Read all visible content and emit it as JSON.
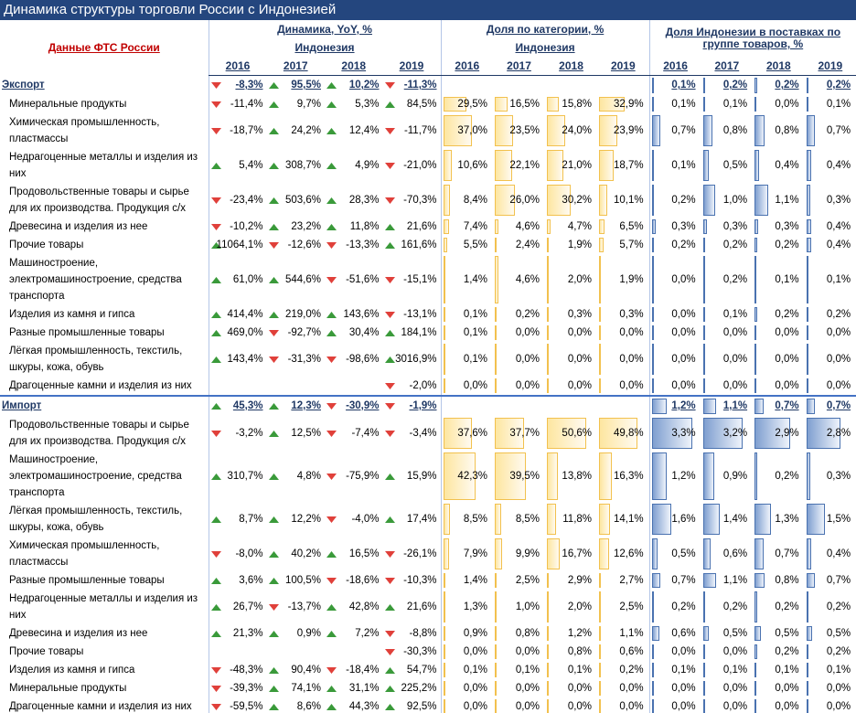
{
  "title": "Динамика структуры торговли России с Индонезией",
  "source_label": "Данные ФТС России",
  "headers": {
    "yoy": "Динамика, YoY, %",
    "share": "Доля по категории, %",
    "indonesia_share": "Доля Индонезии в поставках по группе товаров, %",
    "country": "Индонезия"
  },
  "years": [
    "2016",
    "2017",
    "2018",
    "2019"
  ],
  "sections": [
    {
      "name": "Экспорт",
      "yoy": [
        "-8,3%",
        "95,5%",
        "10,2%",
        "-11,3%"
      ],
      "indonesia_share": [
        "0,1%",
        "0,2%",
        "0,2%",
        "0,2%"
      ],
      "rows": [
        {
          "label": "Минеральные продукты",
          "yoy": [
            "-11,4%",
            "9,7%",
            "5,3%",
            "84,5%"
          ],
          "share": [
            "29,5%",
            "16,5%",
            "15,8%",
            "32,9%"
          ],
          "indonesia_share": [
            "0,1%",
            "0,1%",
            "0,0%",
            "0,1%"
          ]
        },
        {
          "label": "Химическая промышленность, пластмассы",
          "yoy": [
            "-18,7%",
            "24,2%",
            "12,4%",
            "-11,7%"
          ],
          "share": [
            "37,0%",
            "23,5%",
            "24,0%",
            "23,9%"
          ],
          "indonesia_share": [
            "0,7%",
            "0,8%",
            "0,8%",
            "0,7%"
          ]
        },
        {
          "label": "Недрагоценные металлы и изделия из них",
          "yoy": [
            "5,4%",
            "308,7%",
            "4,9%",
            "-21,0%"
          ],
          "share": [
            "10,6%",
            "22,1%",
            "21,0%",
            "18,7%"
          ],
          "indonesia_share": [
            "0,1%",
            "0,5%",
            "0,4%",
            "0,4%"
          ]
        },
        {
          "label": "Продовольственные товары и сырье для их производства. Продукция с/х",
          "yoy": [
            "-23,4%",
            "503,6%",
            "28,3%",
            "-70,3%"
          ],
          "share": [
            "8,4%",
            "26,0%",
            "30,2%",
            "10,1%"
          ],
          "indonesia_share": [
            "0,2%",
            "1,0%",
            "1,1%",
            "0,3%"
          ]
        },
        {
          "label": "Древесина и изделия из нее",
          "yoy": [
            "-10,2%",
            "23,2%",
            "11,8%",
            "21,6%"
          ],
          "share": [
            "7,4%",
            "4,6%",
            "4,7%",
            "6,5%"
          ],
          "indonesia_share": [
            "0,3%",
            "0,3%",
            "0,3%",
            "0,4%"
          ]
        },
        {
          "label": "Прочие товары",
          "yoy": [
            "11064,1%",
            "-12,6%",
            "-13,3%",
            "161,6%"
          ],
          "share": [
            "5,5%",
            "2,4%",
            "1,9%",
            "5,7%"
          ],
          "indonesia_share": [
            "0,2%",
            "0,2%",
            "0,2%",
            "0,4%"
          ]
        },
        {
          "label": "Машиностроение, электромашиностроение, средства транспорта",
          "yoy": [
            "61,0%",
            "544,6%",
            "-51,6%",
            "-15,1%"
          ],
          "share": [
            "1,4%",
            "4,6%",
            "2,0%",
            "1,9%"
          ],
          "indonesia_share": [
            "0,0%",
            "0,2%",
            "0,1%",
            "0,1%"
          ]
        },
        {
          "label": "Изделия из камня и гипса",
          "yoy": [
            "414,4%",
            "219,0%",
            "143,6%",
            "-13,1%"
          ],
          "share": [
            "0,1%",
            "0,2%",
            "0,3%",
            "0,3%"
          ],
          "indonesia_share": [
            "0,0%",
            "0,1%",
            "0,2%",
            "0,2%"
          ]
        },
        {
          "label": "Разные промышленные товары",
          "yoy": [
            "469,0%",
            "-92,7%",
            "30,4%",
            "184,1%"
          ],
          "share": [
            "0,1%",
            "0,0%",
            "0,0%",
            "0,0%"
          ],
          "indonesia_share": [
            "0,0%",
            "0,0%",
            "0,0%",
            "0,0%"
          ]
        },
        {
          "label": "Лёгкая промышленность, текстиль, шкуры, кожа, обувь",
          "yoy": [
            "143,4%",
            "-31,3%",
            "-98,6%",
            "3016,9%"
          ],
          "share": [
            "0,1%",
            "0,0%",
            "0,0%",
            "0,0%"
          ],
          "indonesia_share": [
            "0,0%",
            "0,0%",
            "0,0%",
            "0,0%"
          ]
        },
        {
          "label": "Драгоценные камни и изделия из них",
          "yoy": [
            null,
            null,
            null,
            "-2,0%"
          ],
          "share": [
            "0,0%",
            "0,0%",
            "0,0%",
            "0,0%"
          ],
          "indonesia_share": [
            "0,0%",
            "0,0%",
            "0,0%",
            "0,0%"
          ]
        }
      ]
    },
    {
      "name": "Импорт",
      "yoy": [
        "45,3%",
        "12,3%",
        "-30,9%",
        "-1,9%"
      ],
      "indonesia_share": [
        "1,2%",
        "1,1%",
        "0,7%",
        "0,7%"
      ],
      "rows": [
        {
          "label": "Продовольственные товары и сырье для их производства. Продукция с/х",
          "yoy": [
            "-3,2%",
            "12,5%",
            "-7,4%",
            "-3,4%"
          ],
          "share": [
            "37,6%",
            "37,7%",
            "50,6%",
            "49,8%"
          ],
          "indonesia_share": [
            "3,3%",
            "3,2%",
            "2,9%",
            "2,8%"
          ]
        },
        {
          "label": "Машиностроение, электромашиностроение, средства транспорта",
          "yoy": [
            "310,7%",
            "4,8%",
            "-75,9%",
            "15,9%"
          ],
          "share": [
            "42,3%",
            "39,5%",
            "13,8%",
            "16,3%"
          ],
          "indonesia_share": [
            "1,2%",
            "0,9%",
            "0,2%",
            "0,3%"
          ]
        },
        {
          "label": "Лёгкая промышленность, текстиль, шкуры, кожа, обувь",
          "yoy": [
            "8,7%",
            "12,2%",
            "-4,0%",
            "17,4%"
          ],
          "share": [
            "8,5%",
            "8,5%",
            "11,8%",
            "14,1%"
          ],
          "indonesia_share": [
            "1,6%",
            "1,4%",
            "1,3%",
            "1,5%"
          ]
        },
        {
          "label": "Химическая промышленность, пластмассы",
          "yoy": [
            "-8,0%",
            "40,2%",
            "16,5%",
            "-26,1%"
          ],
          "share": [
            "7,9%",
            "9,9%",
            "16,7%",
            "12,6%"
          ],
          "indonesia_share": [
            "0,5%",
            "0,6%",
            "0,7%",
            "0,4%"
          ]
        },
        {
          "label": "Разные промышленные товары",
          "yoy": [
            "3,6%",
            "100,5%",
            "-18,6%",
            "-10,3%"
          ],
          "share": [
            "1,4%",
            "2,5%",
            "2,9%",
            "2,7%"
          ],
          "indonesia_share": [
            "0,7%",
            "1,1%",
            "0,8%",
            "0,7%"
          ]
        },
        {
          "label": "Недрагоценные металлы и изделия из них",
          "yoy": [
            "26,7%",
            "-13,7%",
            "42,8%",
            "21,6%"
          ],
          "share": [
            "1,3%",
            "1,0%",
            "2,0%",
            "2,5%"
          ],
          "indonesia_share": [
            "0,2%",
            "0,2%",
            "0,2%",
            "0,2%"
          ]
        },
        {
          "label": "Древесина и изделия из нее",
          "yoy": [
            "21,3%",
            "0,9%",
            "7,2%",
            "-8,8%"
          ],
          "share": [
            "0,9%",
            "0,8%",
            "1,2%",
            "1,1%"
          ],
          "indonesia_share": [
            "0,6%",
            "0,5%",
            "0,5%",
            "0,5%"
          ]
        },
        {
          "label": "Прочие товары",
          "yoy": [
            null,
            null,
            null,
            "-30,3%"
          ],
          "share": [
            "0,0%",
            "0,0%",
            "0,8%",
            "0,6%"
          ],
          "indonesia_share": [
            "0,0%",
            "0,0%",
            "0,2%",
            "0,2%"
          ]
        },
        {
          "label": "Изделия из камня и гипса",
          "yoy": [
            "-48,3%",
            "90,4%",
            "-18,4%",
            "54,7%"
          ],
          "share": [
            "0,1%",
            "0,1%",
            "0,1%",
            "0,2%"
          ],
          "indonesia_share": [
            "0,1%",
            "0,1%",
            "0,1%",
            "0,1%"
          ]
        },
        {
          "label": "Минеральные продукты",
          "yoy": [
            "-39,3%",
            "74,1%",
            "31,1%",
            "225,2%"
          ],
          "share": [
            "0,0%",
            "0,0%",
            "0,0%",
            "0,0%"
          ],
          "indonesia_share": [
            "0,0%",
            "0,0%",
            "0,0%",
            "0,0%"
          ]
        },
        {
          "label": "Драгоценные камни и изделия из них",
          "yoy": [
            "-59,5%",
            "8,6%",
            "44,3%",
            "92,5%"
          ],
          "share": [
            "0,0%",
            "0,0%",
            "0,0%",
            "0,0%"
          ],
          "indonesia_share": [
            "0,0%",
            "0,0%",
            "0,0%",
            "0,0%"
          ]
        }
      ]
    }
  ]
}
